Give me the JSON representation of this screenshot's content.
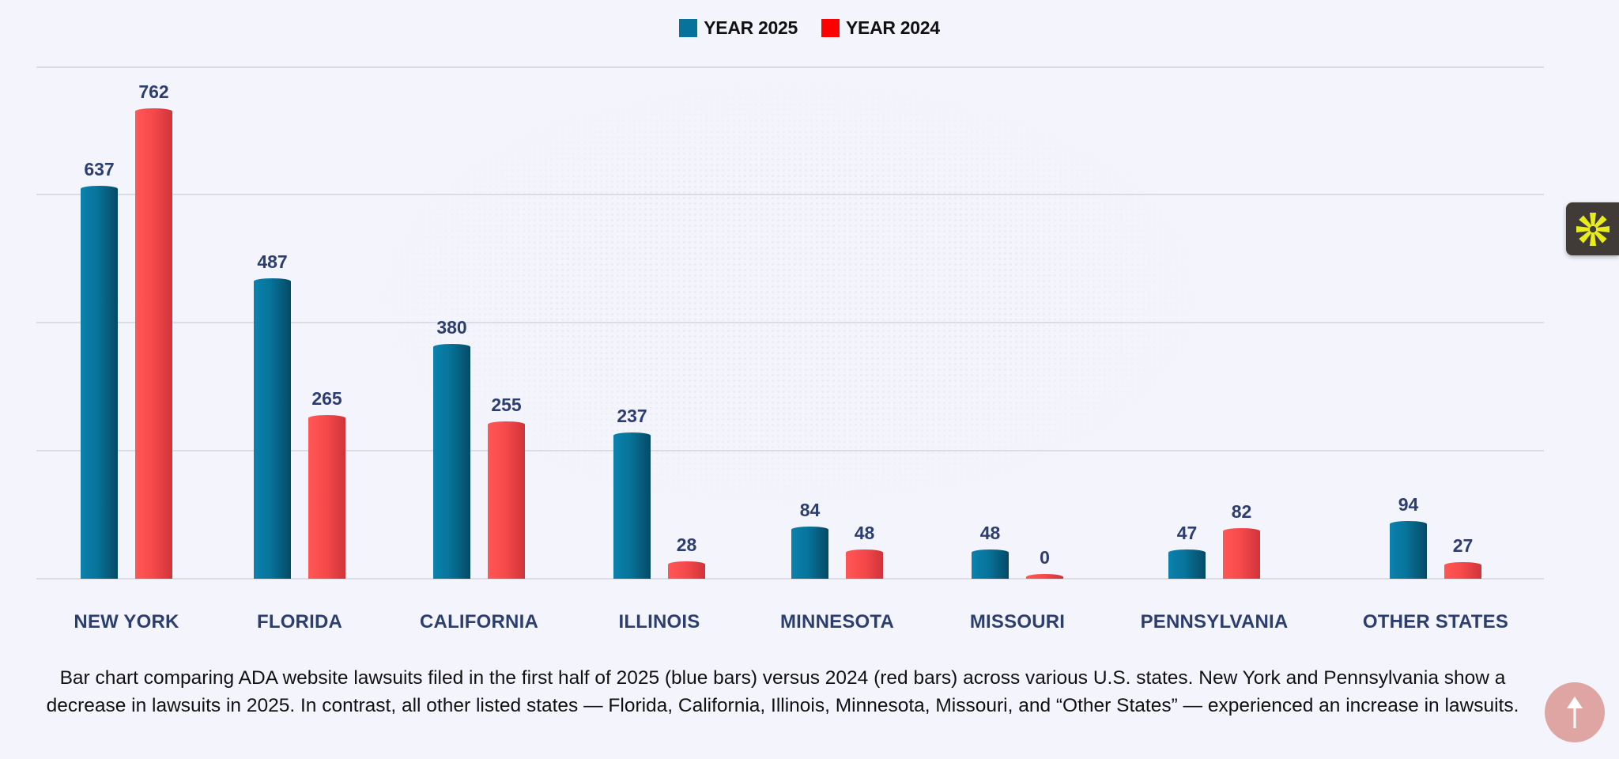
{
  "legend": [
    {
      "label": "YEAR 2025",
      "color": "#07739a"
    },
    {
      "label": "YEAR 2024",
      "color": "#ff0000"
    }
  ],
  "chart_data": {
    "type": "bar",
    "title": "",
    "xlabel": "",
    "ylabel": "",
    "categories": [
      "NEW YORK",
      "FLORIDA",
      "CALIFORNIA",
      "ILLINOIS",
      "MINNESOTA",
      "MISSOURI",
      "PENNSYLVANIA",
      "OTHER STATES"
    ],
    "series": [
      {
        "name": "YEAR 2025",
        "color": "#07739a",
        "values": [
          637,
          487,
          380,
          237,
          84,
          48,
          47,
          94
        ]
      },
      {
        "name": "YEAR 2024",
        "color": "#f5484a",
        "values": [
          762,
          265,
          255,
          28,
          48,
          0,
          82,
          27
        ]
      }
    ],
    "ylim": [
      0,
      830
    ],
    "grid": true,
    "y_ticks_visible": false,
    "legend_position": "top-center",
    "data_labels": true
  },
  "caption": "Bar chart comparing ADA website lawsuits filed in the first half of 2025 (blue bars) versus 2024 (red bars) across various U.S. states. New York and Pennsylvania show a decrease in lawsuits in 2025. In contrast, all other listed states — Florida, California, Illinois, Minnesota, Missouri, and “Other States” — experienced an increase in lawsuits.",
  "widgets": {
    "accessibility_widget_icon": "asterisk-burst-icon",
    "accessibility_widget_color": "#e8ec1a",
    "scroll_top_icon": "arrow-up-icon"
  }
}
